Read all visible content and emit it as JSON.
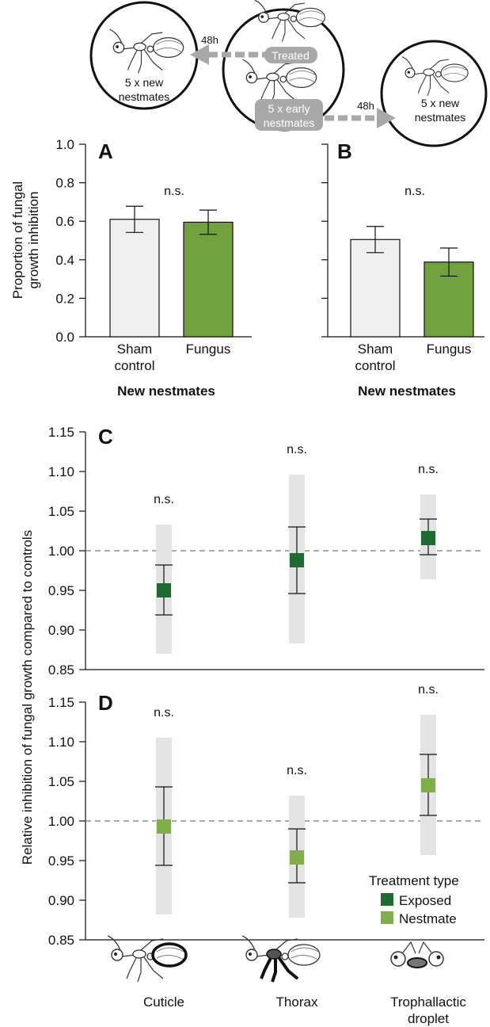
{
  "schematic": {
    "left_circle": {
      "line1": "5 x new",
      "line2": "nestmates"
    },
    "center_treated": "Treated",
    "center_early": {
      "line1": "5 x early",
      "line2": "nestmates"
    },
    "right_circle": {
      "line1": "5 x new",
      "line2": "nestmates"
    },
    "arrow_left_label": "48h",
    "arrow_right_label": "48h",
    "colors": {
      "arrow": "#a8a8a8",
      "label_box": "#a8a8a8"
    }
  },
  "chart_data": [
    {
      "type": "bar",
      "panel": "A",
      "categories": [
        "Sham control",
        "Fungus"
      ],
      "category_lines": [
        [
          "Sham",
          "control"
        ],
        [
          "Fungus"
        ]
      ],
      "values": [
        0.61,
        0.595
      ],
      "errors": [
        0.068,
        0.063
      ],
      "ylabel": [
        "Proportion of fungal",
        "growth inhibition"
      ],
      "xlabel": "New nestmates",
      "ylim": [
        0,
        1.0
      ],
      "yticks": [
        "0.0",
        "0.2",
        "0.4",
        "0.6",
        "0.8",
        "1.0"
      ],
      "annotation": "n.s.",
      "colors": [
        "#efefef",
        "#72a23e"
      ]
    },
    {
      "type": "bar",
      "panel": "B",
      "categories": [
        "Sham control",
        "Fungus"
      ],
      "category_lines": [
        [
          "Sham",
          "control"
        ],
        [
          "Fungus"
        ]
      ],
      "values": [
        0.505,
        0.388
      ],
      "errors": [
        0.068,
        0.073
      ],
      "xlabel": "New nestmates",
      "ylim": [
        0,
        1.0
      ],
      "annotation": "n.s.",
      "colors": [
        "#efefef",
        "#72a23e"
      ]
    },
    {
      "type": "scatter",
      "panel": "C",
      "series_name": "Exposed",
      "categories": [
        "Cuticle",
        "Thorax",
        "Trophallactic droplet"
      ],
      "values": [
        0.95,
        0.988,
        1.016
      ],
      "ci_lower": [
        0.919,
        0.946,
        0.995
      ],
      "ci_upper": [
        0.982,
        1.03,
        1.04
      ],
      "range_lower": [
        0.87,
        0.883,
        0.964
      ],
      "range_upper": [
        1.033,
        1.096,
        1.071
      ],
      "annotations": [
        "n.s.",
        "n.s.",
        "n.s."
      ],
      "ylim": [
        0.85,
        1.15
      ],
      "yticks": [
        "0.85",
        "0.90",
        "0.95",
        "1.00",
        "1.05",
        "1.10",
        "1.15"
      ],
      "reference_line": 1.0,
      "color": "#1f6b31"
    },
    {
      "type": "scatter",
      "panel": "D",
      "series_name": "Nestmate",
      "categories": [
        "Cuticle",
        "Thorax",
        "Trophallactic droplet"
      ],
      "values": [
        0.993,
        0.954,
        1.045
      ],
      "ci_lower": [
        0.944,
        0.922,
        1.007
      ],
      "ci_upper": [
        1.043,
        0.99,
        1.084
      ],
      "range_lower": [
        0.882,
        0.878,
        0.957
      ],
      "range_upper": [
        1.105,
        1.032,
        1.134
      ],
      "annotations": [
        "n.s.",
        "n.s.",
        "n.s."
      ],
      "ylim": [
        0.85,
        1.15
      ],
      "yticks": [
        "0.85",
        "0.90",
        "0.95",
        "1.00",
        "1.05",
        "1.10",
        "1.15"
      ],
      "reference_line": 1.0,
      "color": "#7fae4a"
    }
  ],
  "cd_shared": {
    "ylabel": "Relative inhibition of fungal growth compared to controls",
    "categories_lines": [
      [
        "Cuticle"
      ],
      [
        "Thorax"
      ],
      [
        "Trophallactic",
        "droplet"
      ]
    ],
    "legend": {
      "title": "Treatment type",
      "items": [
        {
          "label": "Exposed",
          "color": "#1f6b31"
        },
        {
          "label": "Nestmate",
          "color": "#7fae4a"
        }
      ]
    },
    "range_color": "#e3e3e3"
  }
}
